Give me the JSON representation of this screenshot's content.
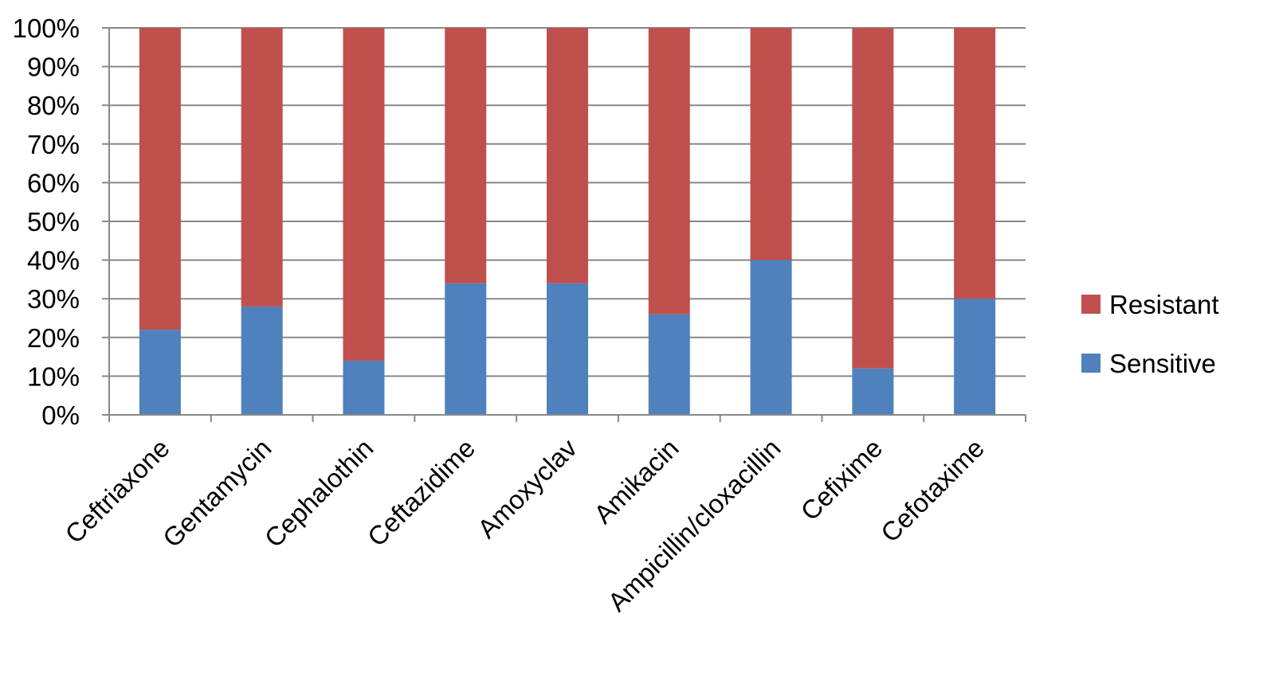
{
  "chart_data": {
    "type": "bar",
    "stacked": true,
    "percent_stacked": true,
    "categories": [
      "Ceftriaxone",
      "Gentamycin",
      "Cephalothin",
      "Ceftazidime",
      "Amoxyclav",
      "Amikacin",
      "Ampicillin/cloxacillin",
      "Cefixime",
      "Cefotaxime"
    ],
    "series": [
      {
        "name": "Sensitive",
        "color": "#4f81bd",
        "values": [
          22,
          28,
          14,
          34,
          34,
          26,
          40,
          12,
          30
        ]
      },
      {
        "name": "Resistant",
        "color": "#c0504d",
        "values": [
          78,
          72,
          86,
          66,
          66,
          74,
          60,
          88,
          70
        ]
      }
    ],
    "y_ticks": [
      "0%",
      "10%",
      "20%",
      "30%",
      "40%",
      "50%",
      "60%",
      "70%",
      "80%",
      "90%",
      "100%"
    ],
    "ylim": [
      0,
      100
    ],
    "grid": true,
    "gridline_color": "#888888",
    "legend_position": "right",
    "legend_order": [
      "Resistant",
      "Sensitive"
    ]
  }
}
